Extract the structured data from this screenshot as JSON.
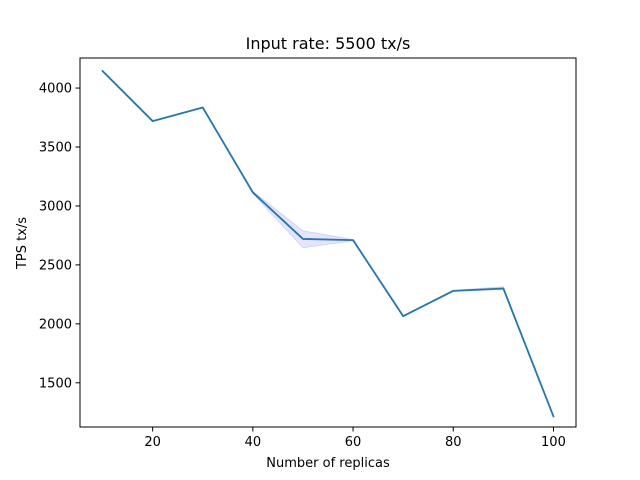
{
  "chart_data": {
    "type": "line",
    "title": "Input rate: 5500 tx/s",
    "xlabel": "Number of replicas",
    "ylabel": "TPS tx/s",
    "xlim": [
      5.5,
      104.5
    ],
    "ylim": [
      1125,
      4255
    ],
    "xticks": [
      20,
      40,
      60,
      80,
      100
    ],
    "yticks": [
      1500,
      2000,
      2500,
      3000,
      3500,
      4000
    ],
    "grid": false,
    "series": [
      {
        "color": "#1f77b4",
        "x": [
          10,
          20,
          30,
          40,
          50,
          60,
          70,
          80,
          90,
          100
        ],
        "values": [
          4145,
          3720,
          3835,
          3115,
          2720,
          2710,
          2065,
          2280,
          2300,
          1215
        ],
        "band_low": [
          4145,
          3720,
          3835,
          3105,
          2645,
          2705,
          2065,
          2275,
          2290,
          1215
        ],
        "band_high": [
          4145,
          3720,
          3835,
          3125,
          2790,
          2715,
          2065,
          2285,
          2315,
          1215
        ],
        "band_color": "#0000ff"
      }
    ]
  }
}
